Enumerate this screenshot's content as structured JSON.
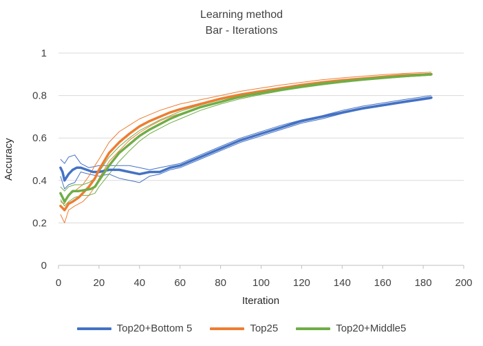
{
  "chart_data": {
    "type": "line",
    "title": "Learning method",
    "subtitle": "Bar - Iterations",
    "xlabel": "Iteration",
    "ylabel": "Accuracy",
    "xlim": [
      0,
      200
    ],
    "ylim": [
      0,
      1
    ],
    "x_ticks": [
      "0",
      "20",
      "40",
      "60",
      "80",
      "100",
      "120",
      "140",
      "160",
      "180",
      "200"
    ],
    "y_ticks": [
      "0",
      "0.2",
      "0.4",
      "0.6",
      "0.8",
      "1"
    ],
    "grid": "horizontal",
    "legend_position": "bottom",
    "series": [
      {
        "name": "Top20+Bottom 5",
        "color": "#4472c4",
        "points": [
          [
            1,
            0.46
          ],
          [
            2,
            0.44
          ],
          [
            3,
            0.4
          ],
          [
            5,
            0.43
          ],
          [
            7,
            0.45
          ],
          [
            9,
            0.46
          ],
          [
            11,
            0.46
          ],
          [
            14,
            0.45
          ],
          [
            17,
            0.44
          ],
          [
            20,
            0.44
          ],
          [
            25,
            0.45
          ],
          [
            30,
            0.45
          ],
          [
            35,
            0.44
          ],
          [
            40,
            0.43
          ],
          [
            45,
            0.44
          ],
          [
            50,
            0.44
          ],
          [
            55,
            0.46
          ],
          [
            60,
            0.47
          ],
          [
            70,
            0.51
          ],
          [
            80,
            0.55
          ],
          [
            90,
            0.59
          ],
          [
            100,
            0.62
          ],
          [
            110,
            0.65
          ],
          [
            120,
            0.68
          ],
          [
            130,
            0.7
          ],
          [
            140,
            0.72
          ],
          [
            150,
            0.74
          ],
          [
            160,
            0.755
          ],
          [
            170,
            0.77
          ],
          [
            184,
            0.79
          ]
        ],
        "upper": [
          [
            1,
            0.5
          ],
          [
            3,
            0.48
          ],
          [
            5,
            0.51
          ],
          [
            8,
            0.52
          ],
          [
            11,
            0.48
          ],
          [
            15,
            0.46
          ],
          [
            20,
            0.47
          ],
          [
            25,
            0.47
          ],
          [
            30,
            0.47
          ],
          [
            35,
            0.47
          ],
          [
            40,
            0.46
          ],
          [
            45,
            0.45
          ],
          [
            50,
            0.46
          ],
          [
            55,
            0.47
          ],
          [
            60,
            0.48
          ],
          [
            70,
            0.52
          ],
          [
            80,
            0.56
          ],
          [
            90,
            0.6
          ],
          [
            100,
            0.63
          ],
          [
            110,
            0.66
          ],
          [
            120,
            0.685
          ],
          [
            130,
            0.705
          ],
          [
            140,
            0.73
          ],
          [
            150,
            0.75
          ],
          [
            160,
            0.765
          ],
          [
            170,
            0.78
          ],
          [
            184,
            0.8
          ]
        ],
        "lower": [
          [
            1,
            0.42
          ],
          [
            3,
            0.36
          ],
          [
            5,
            0.38
          ],
          [
            8,
            0.39
          ],
          [
            11,
            0.44
          ],
          [
            15,
            0.43
          ],
          [
            20,
            0.42
          ],
          [
            25,
            0.43
          ],
          [
            30,
            0.41
          ],
          [
            35,
            0.4
          ],
          [
            40,
            0.39
          ],
          [
            45,
            0.42
          ],
          [
            50,
            0.43
          ],
          [
            55,
            0.45
          ],
          [
            60,
            0.46
          ],
          [
            70,
            0.5
          ],
          [
            80,
            0.54
          ],
          [
            90,
            0.58
          ],
          [
            100,
            0.61
          ],
          [
            110,
            0.64
          ],
          [
            120,
            0.67
          ],
          [
            130,
            0.69
          ],
          [
            140,
            0.715
          ],
          [
            150,
            0.735
          ],
          [
            160,
            0.75
          ],
          [
            170,
            0.765
          ],
          [
            184,
            0.785
          ]
        ]
      },
      {
        "name": "Top25",
        "color": "#ed7d31",
        "points": [
          [
            1,
            0.28
          ],
          [
            2,
            0.27
          ],
          [
            3,
            0.26
          ],
          [
            5,
            0.29
          ],
          [
            7,
            0.3
          ],
          [
            10,
            0.32
          ],
          [
            12,
            0.34
          ],
          [
            15,
            0.37
          ],
          [
            18,
            0.41
          ],
          [
            20,
            0.45
          ],
          [
            25,
            0.53
          ],
          [
            30,
            0.58
          ],
          [
            35,
            0.62
          ],
          [
            40,
            0.655
          ],
          [
            45,
            0.68
          ],
          [
            50,
            0.7
          ],
          [
            55,
            0.72
          ],
          [
            60,
            0.735
          ],
          [
            70,
            0.76
          ],
          [
            80,
            0.785
          ],
          [
            90,
            0.805
          ],
          [
            100,
            0.82
          ],
          [
            110,
            0.835
          ],
          [
            120,
            0.85
          ],
          [
            130,
            0.862
          ],
          [
            140,
            0.872
          ],
          [
            150,
            0.88
          ],
          [
            160,
            0.888
          ],
          [
            170,
            0.895
          ],
          [
            184,
            0.9
          ]
        ],
        "upper": [
          [
            1,
            0.3
          ],
          [
            3,
            0.29
          ],
          [
            5,
            0.33
          ],
          [
            8,
            0.35
          ],
          [
            12,
            0.38
          ],
          [
            15,
            0.42
          ],
          [
            18,
            0.47
          ],
          [
            20,
            0.5
          ],
          [
            25,
            0.58
          ],
          [
            30,
            0.63
          ],
          [
            35,
            0.66
          ],
          [
            40,
            0.69
          ],
          [
            45,
            0.71
          ],
          [
            50,
            0.73
          ],
          [
            55,
            0.745
          ],
          [
            60,
            0.76
          ],
          [
            70,
            0.78
          ],
          [
            80,
            0.8
          ],
          [
            90,
            0.82
          ],
          [
            100,
            0.835
          ],
          [
            110,
            0.85
          ],
          [
            120,
            0.862
          ],
          [
            130,
            0.874
          ],
          [
            140,
            0.883
          ],
          [
            150,
            0.891
          ],
          [
            160,
            0.898
          ],
          [
            170,
            0.904
          ],
          [
            184,
            0.91
          ]
        ],
        "lower": [
          [
            1,
            0.24
          ],
          [
            3,
            0.2
          ],
          [
            5,
            0.26
          ],
          [
            8,
            0.28
          ],
          [
            12,
            0.3
          ],
          [
            15,
            0.33
          ],
          [
            18,
            0.37
          ],
          [
            20,
            0.41
          ],
          [
            25,
            0.49
          ],
          [
            30,
            0.54
          ],
          [
            35,
            0.59
          ],
          [
            40,
            0.625
          ],
          [
            45,
            0.655
          ],
          [
            50,
            0.68
          ],
          [
            55,
            0.7
          ],
          [
            60,
            0.715
          ],
          [
            70,
            0.745
          ],
          [
            80,
            0.77
          ],
          [
            90,
            0.79
          ],
          [
            100,
            0.81
          ],
          [
            110,
            0.825
          ],
          [
            120,
            0.84
          ],
          [
            130,
            0.852
          ],
          [
            140,
            0.862
          ],
          [
            150,
            0.872
          ],
          [
            160,
            0.88
          ],
          [
            170,
            0.888
          ],
          [
            184,
            0.895
          ]
        ]
      },
      {
        "name": "Top20+Middle5",
        "color": "#70ad47",
        "points": [
          [
            1,
            0.34
          ],
          [
            2,
            0.32
          ],
          [
            3,
            0.3
          ],
          [
            5,
            0.33
          ],
          [
            7,
            0.35
          ],
          [
            10,
            0.35
          ],
          [
            13,
            0.355
          ],
          [
            16,
            0.36
          ],
          [
            18,
            0.37
          ],
          [
            20,
            0.4
          ],
          [
            25,
            0.47
          ],
          [
            30,
            0.53
          ],
          [
            35,
            0.57
          ],
          [
            40,
            0.61
          ],
          [
            45,
            0.64
          ],
          [
            50,
            0.665
          ],
          [
            55,
            0.69
          ],
          [
            60,
            0.71
          ],
          [
            70,
            0.745
          ],
          [
            80,
            0.77
          ],
          [
            90,
            0.795
          ],
          [
            100,
            0.812
          ],
          [
            110,
            0.828
          ],
          [
            120,
            0.843
          ],
          [
            130,
            0.856
          ],
          [
            140,
            0.866
          ],
          [
            150,
            0.876
          ],
          [
            160,
            0.884
          ],
          [
            170,
            0.891
          ],
          [
            184,
            0.9
          ]
        ],
        "upper": [
          [
            1,
            0.37
          ],
          [
            3,
            0.35
          ],
          [
            5,
            0.37
          ],
          [
            8,
            0.38
          ],
          [
            12,
            0.38
          ],
          [
            15,
            0.39
          ],
          [
            18,
            0.41
          ],
          [
            20,
            0.44
          ],
          [
            25,
            0.51
          ],
          [
            30,
            0.56
          ],
          [
            35,
            0.6
          ],
          [
            40,
            0.635
          ],
          [
            45,
            0.66
          ],
          [
            50,
            0.685
          ],
          [
            55,
            0.705
          ],
          [
            60,
            0.725
          ],
          [
            70,
            0.755
          ],
          [
            80,
            0.78
          ],
          [
            90,
            0.8
          ],
          [
            100,
            0.82
          ],
          [
            110,
            0.835
          ],
          [
            120,
            0.85
          ],
          [
            130,
            0.862
          ],
          [
            140,
            0.872
          ],
          [
            150,
            0.881
          ],
          [
            160,
            0.889
          ],
          [
            170,
            0.896
          ],
          [
            184,
            0.905
          ]
        ],
        "lower": [
          [
            1,
            0.31
          ],
          [
            3,
            0.28
          ],
          [
            5,
            0.3
          ],
          [
            8,
            0.32
          ],
          [
            12,
            0.33
          ],
          [
            15,
            0.33
          ],
          [
            18,
            0.34
          ],
          [
            20,
            0.37
          ],
          [
            25,
            0.43
          ],
          [
            30,
            0.49
          ],
          [
            35,
            0.54
          ],
          [
            40,
            0.585
          ],
          [
            45,
            0.62
          ],
          [
            50,
            0.645
          ],
          [
            55,
            0.67
          ],
          [
            60,
            0.69
          ],
          [
            70,
            0.73
          ],
          [
            80,
            0.76
          ],
          [
            90,
            0.785
          ],
          [
            100,
            0.805
          ],
          [
            110,
            0.822
          ],
          [
            120,
            0.837
          ],
          [
            130,
            0.85
          ],
          [
            140,
            0.861
          ],
          [
            150,
            0.871
          ],
          [
            160,
            0.879
          ],
          [
            170,
            0.887
          ],
          [
            184,
            0.895
          ]
        ]
      }
    ]
  }
}
